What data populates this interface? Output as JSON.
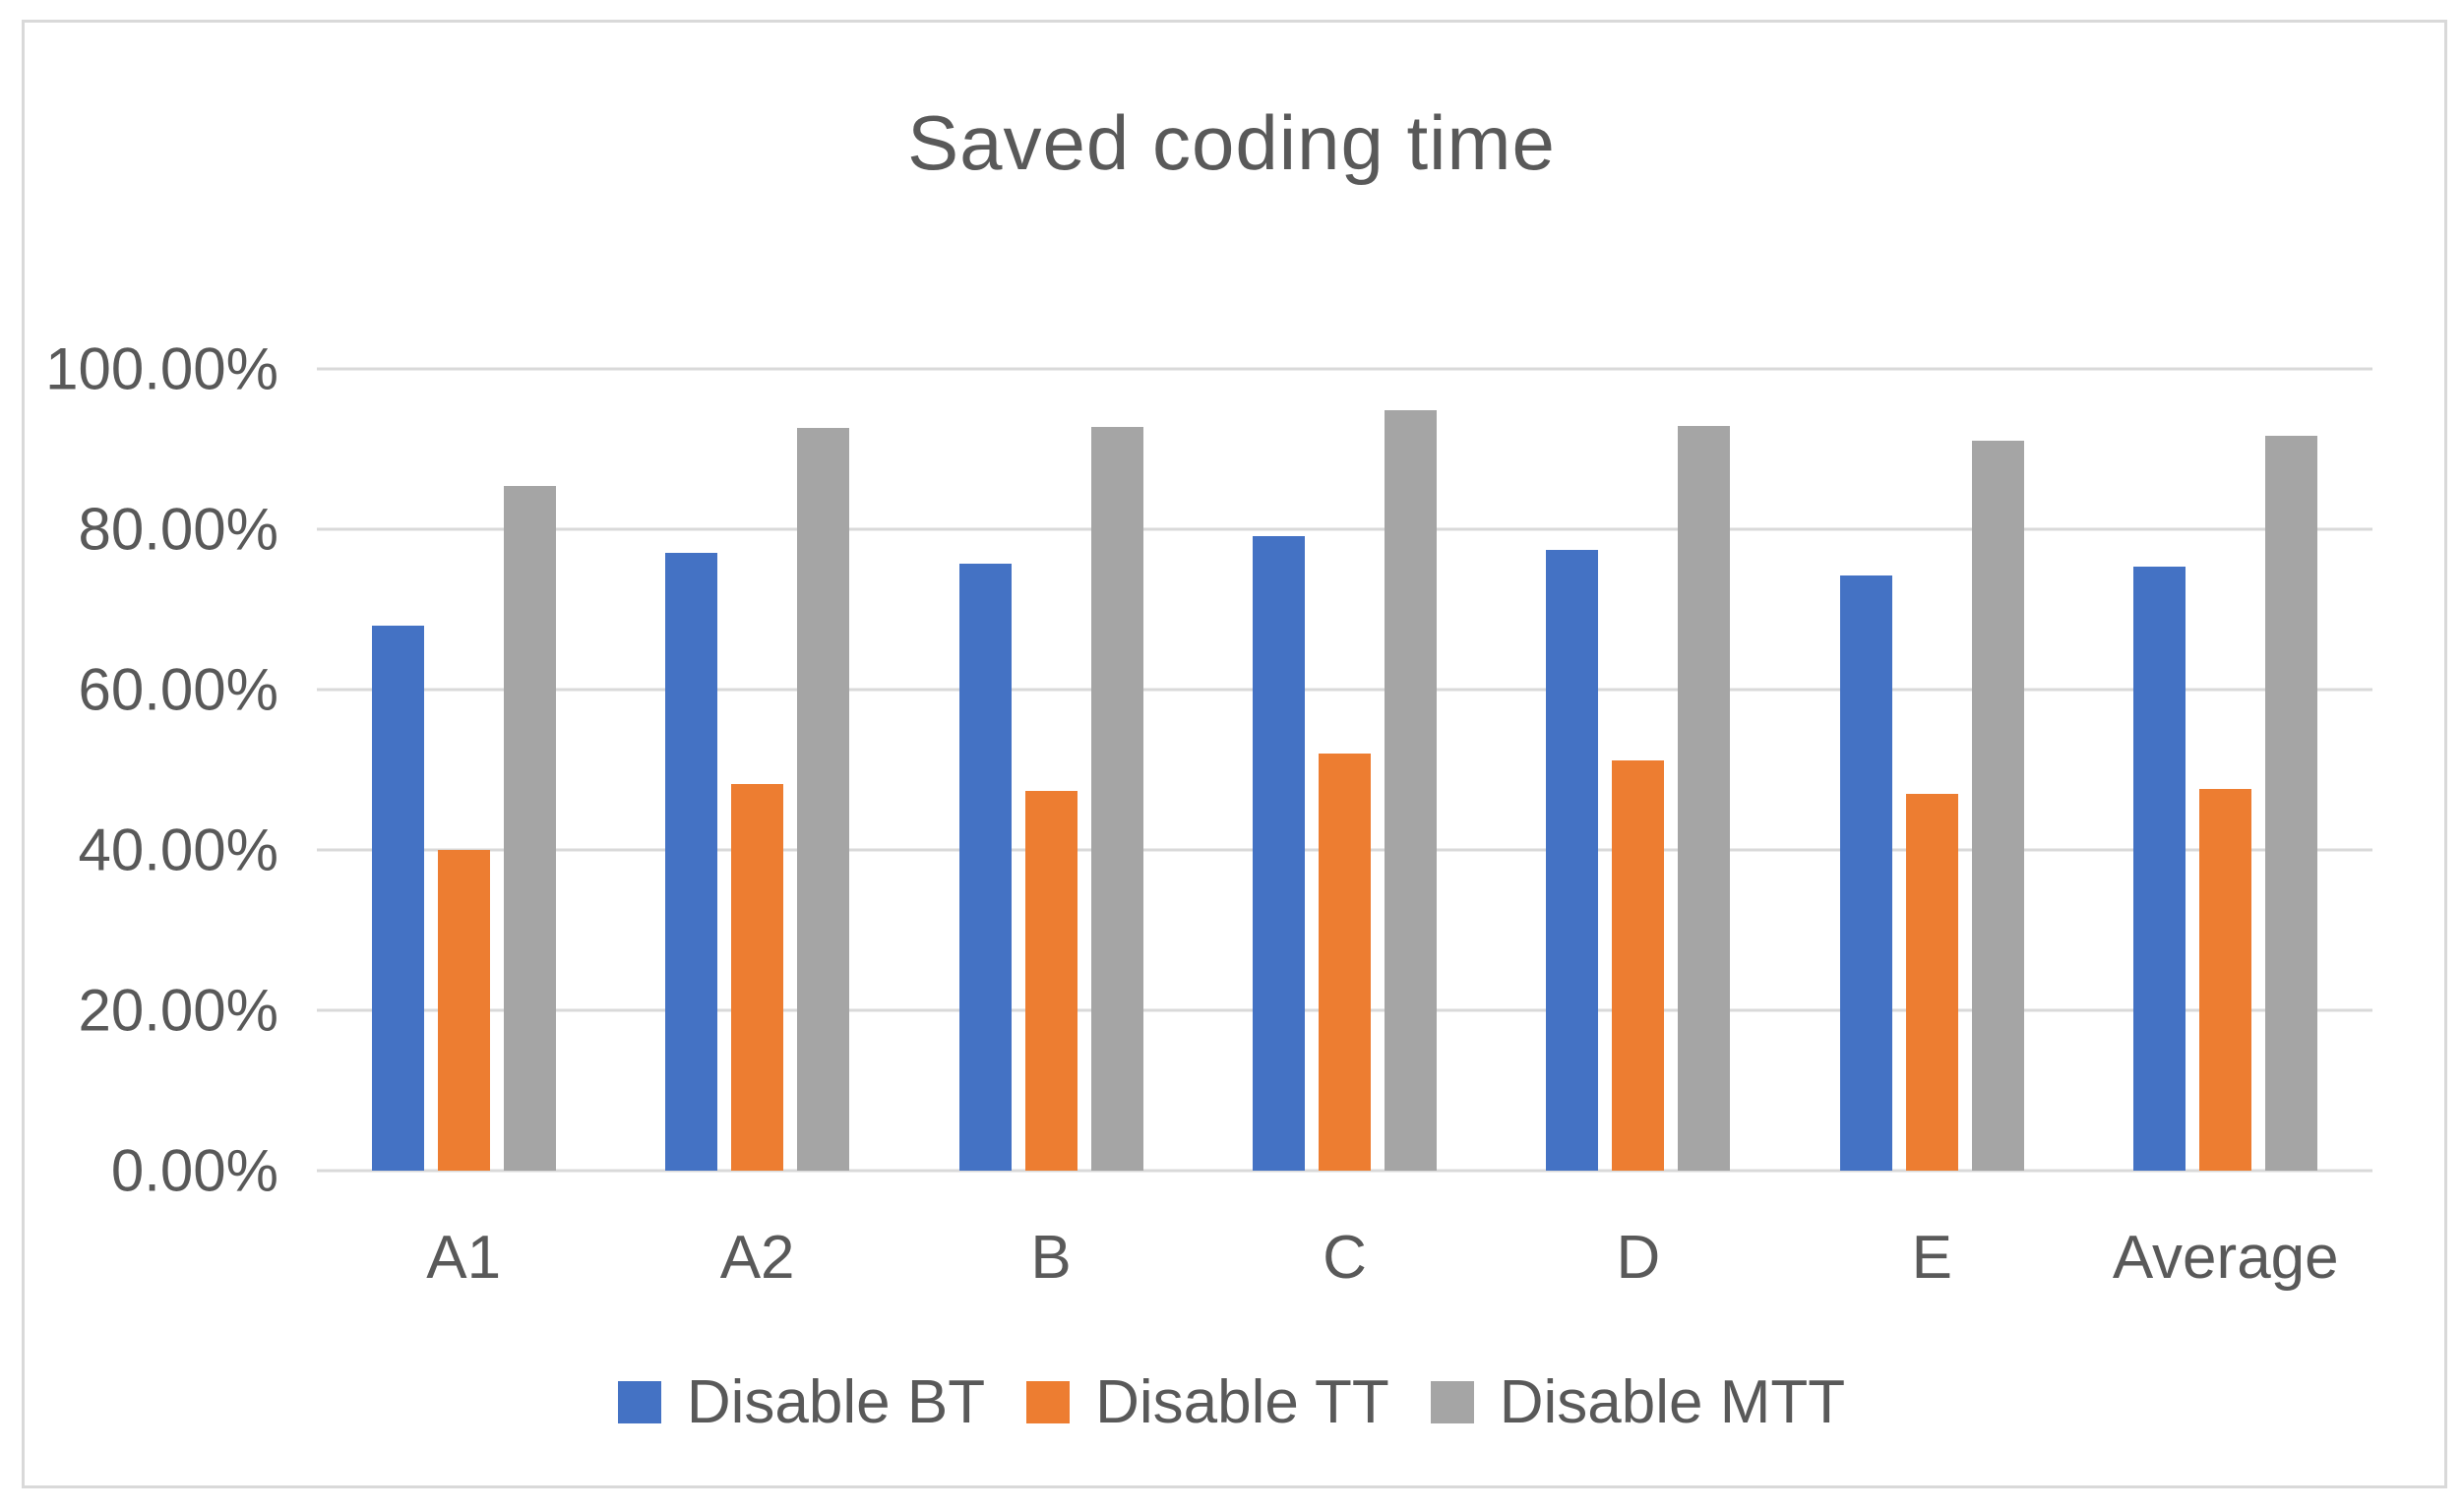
{
  "chart_data": {
    "type": "bar",
    "title": "Saved coding time",
    "categories": [
      "A1",
      "A2",
      "B",
      "C",
      "D",
      "E",
      "Average"
    ],
    "series": [
      {
        "name": "Disable BT",
        "color": "#4472C4",
        "values": [
          68.0,
          77.0,
          75.7,
          79.2,
          77.4,
          74.2,
          75.3
        ]
      },
      {
        "name": "Disable TT",
        "color": "#ED7D31",
        "values": [
          40.0,
          48.2,
          47.4,
          52.0,
          51.2,
          47.0,
          47.6
        ]
      },
      {
        "name": "Disable MTT",
        "color": "#A5A5A5",
        "values": [
          85.4,
          92.6,
          92.8,
          94.9,
          92.9,
          91.0,
          91.6
        ]
      }
    ],
    "y_axis": {
      "min": 0,
      "max": 100,
      "step": 20,
      "tick_labels_top_to_bottom": [
        "100.00%",
        "80.00%",
        "60.00%",
        "40.00%",
        "20.00%",
        "0.00%"
      ]
    },
    "xlabel": "",
    "ylabel": "",
    "grid": true,
    "legend_position": "bottom",
    "styling": {
      "background": "#FFFFFF",
      "grid_color": "#D9D9D9",
      "border_color": "#D9D9D9",
      "text_color": "#595959"
    }
  }
}
